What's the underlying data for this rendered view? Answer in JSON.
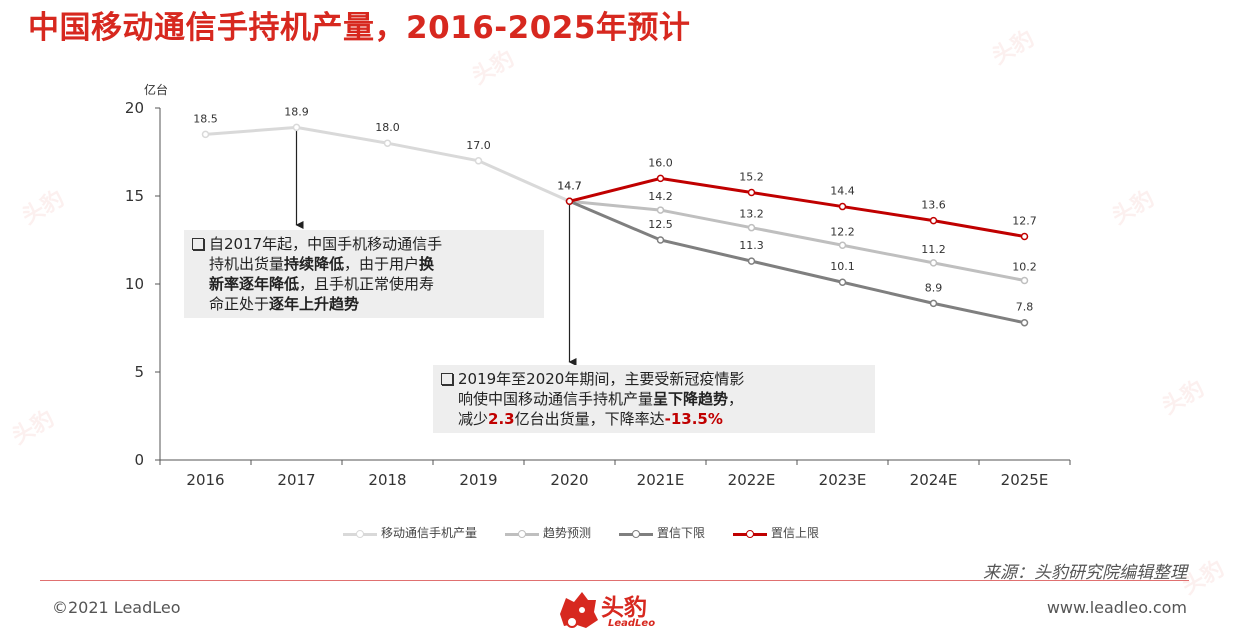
{
  "title": "中国移动通信手持机产量，2016-2025年预计",
  "chart_data": {
    "type": "line",
    "unit_label": "亿台",
    "categories": [
      "2016",
      "2017",
      "2018",
      "2019",
      "2020",
      "2021E",
      "2022E",
      "2023E",
      "2024E",
      "2025E"
    ],
    "ylim": [
      0,
      20
    ],
    "yticks": [
      0,
      5,
      10,
      15,
      20
    ],
    "grid": false,
    "legend_position": "bottom",
    "series": [
      {
        "name": "移动通信手机产量",
        "color": "#d9d9d9",
        "x": [
          "2016",
          "2017",
          "2018",
          "2019",
          "2020"
        ],
        "values": [
          18.5,
          18.9,
          18.0,
          17.0,
          14.7
        ],
        "labels": [
          "18.5",
          "18.9",
          "18.0",
          "17.0",
          "14.7"
        ]
      },
      {
        "name": "趋势预测",
        "color": "#bfbfbf",
        "x": [
          "2020",
          "2021E",
          "2022E",
          "2023E",
          "2024E",
          "2025E"
        ],
        "values": [
          14.7,
          14.2,
          13.2,
          12.2,
          11.2,
          10.2
        ],
        "labels": [
          "",
          "14.2",
          "13.2",
          "12.2",
          "11.2",
          "10.2"
        ]
      },
      {
        "name": "置信下限",
        "color": "#7f7f7f",
        "x": [
          "2020",
          "2021E",
          "2022E",
          "2023E",
          "2024E",
          "2025E"
        ],
        "values": [
          14.7,
          12.5,
          11.3,
          10.1,
          8.9,
          7.8
        ],
        "labels": [
          "",
          "12.5",
          "11.3",
          "10.1",
          "8.9",
          "7.8"
        ]
      },
      {
        "name": "置信上限",
        "color": "#c00000",
        "x": [
          "2020",
          "2021E",
          "2022E",
          "2023E",
          "2024E",
          "2025E"
        ],
        "values": [
          14.7,
          16.0,
          15.2,
          14.4,
          13.6,
          12.7
        ],
        "labels": [
          "",
          "16.0",
          "15.2",
          "14.4",
          "13.6",
          "12.7"
        ]
      }
    ],
    "annotations": [
      {
        "target_x": "2017",
        "target_y": 18.9,
        "text_parts": [
          {
            "t": "自2017年起，中国手机移动通信手",
            "s": "n"
          },
          {
            "t": "\n",
            "s": "n"
          },
          {
            "t": "持机出货量",
            "s": "n"
          },
          {
            "t": "持续降低",
            "s": "b"
          },
          {
            "t": "，由于用户",
            "s": "n"
          },
          {
            "t": "换",
            "s": "b"
          },
          {
            "t": "\n",
            "s": "n"
          },
          {
            "t": "新率逐年降低",
            "s": "b"
          },
          {
            "t": "，且手机正常使用寿",
            "s": "n"
          },
          {
            "t": "\n",
            "s": "n"
          },
          {
            "t": "命正处于",
            "s": "n"
          },
          {
            "t": "逐年上升趋势",
            "s": "b"
          }
        ]
      },
      {
        "target_x": "2020",
        "target_y": 14.7,
        "text_parts": [
          {
            "t": "2019年至2020年期间，主要受新冠疫情影",
            "s": "n"
          },
          {
            "t": "\n",
            "s": "n"
          },
          {
            "t": "响使中国移动通信手持机产量",
            "s": "n"
          },
          {
            "t": "呈下降趋势",
            "s": "b"
          },
          {
            "t": "，",
            "s": "n"
          },
          {
            "t": "\n",
            "s": "n"
          },
          {
            "t": "减少",
            "s": "n"
          },
          {
            "t": "2.3",
            "s": "r"
          },
          {
            "t": "亿台出货量，下降率达",
            "s": "n"
          },
          {
            "t": "-13.5%",
            "s": "r"
          }
        ]
      }
    ]
  },
  "source": "来源：头豹研究院编辑整理",
  "footer": {
    "copyright": "©2021 LeadLeo",
    "website": "www.leadleo.com",
    "logo_text": "头豹",
    "logo_sub": "LeadLeo"
  },
  "colors": {
    "brand": "#d7281f"
  }
}
